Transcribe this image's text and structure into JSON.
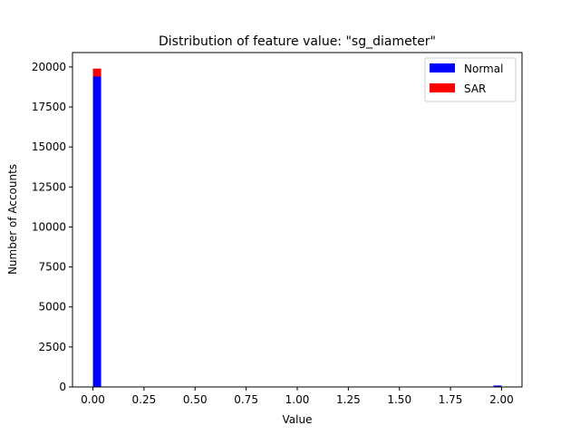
{
  "chart_data": {
    "type": "bar",
    "title": "Distribution of feature value: \"sg_diameter\"",
    "xlabel": "Value",
    "ylabel": "Number of Accounts",
    "xlim": [
      -0.1,
      2.1
    ],
    "ylim": [
      0,
      20900
    ],
    "xticks": [
      "0.00",
      "0.25",
      "0.50",
      "0.75",
      "1.00",
      "1.25",
      "1.50",
      "1.75",
      "2.00"
    ],
    "yticks": [
      "0",
      "2500",
      "5000",
      "7500",
      "10000",
      "12500",
      "15000",
      "17500",
      "20000"
    ],
    "bin_width": 0.04,
    "stacked": true,
    "legend_position": "top-right",
    "series": [
      {
        "name": "Normal",
        "color": "#0000ff",
        "bins": [
          {
            "x0": 0.0,
            "x1": 0.04,
            "value": 19400
          },
          {
            "x0": 1.96,
            "x1": 2.0,
            "value": 90
          }
        ]
      },
      {
        "name": "SAR",
        "color": "#ff0000",
        "bins": [
          {
            "x0": 0.0,
            "x1": 0.04,
            "value": 500
          }
        ]
      }
    ]
  }
}
